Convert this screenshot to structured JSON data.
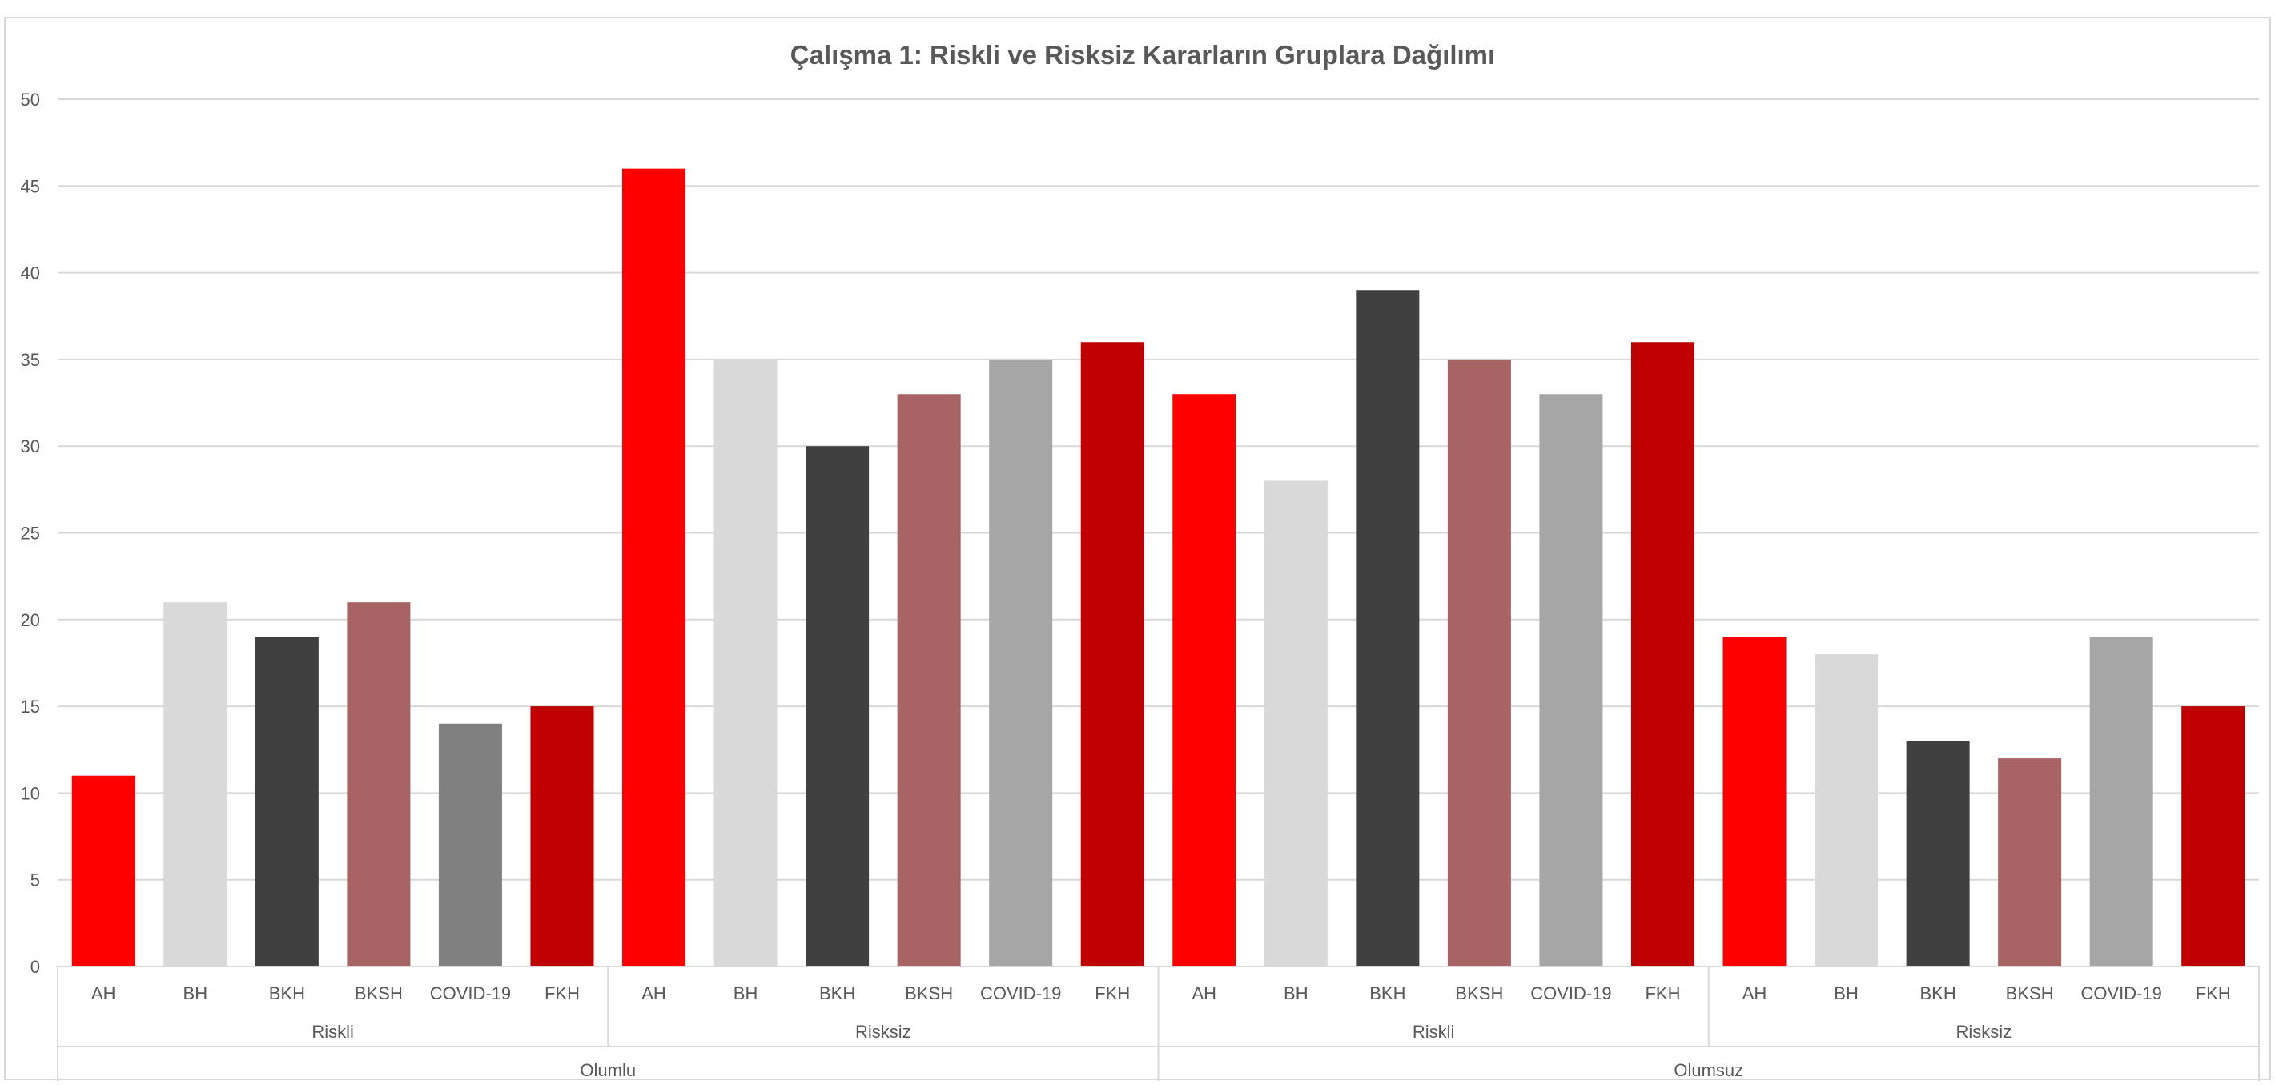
{
  "chart_data": {
    "type": "bar",
    "title": "Çalışma 1: Riskli ve Risksiz Kararların Gruplara Dağılımı",
    "xlabel": "",
    "ylabel": "",
    "ylim": [
      0,
      50
    ],
    "y_ticks": [
      0,
      5,
      10,
      15,
      20,
      25,
      30,
      35,
      40,
      45,
      50
    ],
    "grid": true,
    "legend": "none",
    "outer_groups": [
      {
        "label": "Olumlu",
        "groups": [
          {
            "label": "Riskli",
            "bars": [
              {
                "category": "AH",
                "value": 11,
                "color": "#ff0000"
              },
              {
                "category": "BH",
                "value": 21,
                "color": "#d9d9d9"
              },
              {
                "category": "BKH",
                "value": 19,
                "color": "#404040"
              },
              {
                "category": "BKSH",
                "value": 21,
                "color": "#a86464"
              },
              {
                "category": "COVID-19",
                "value": 14,
                "color": "#808080"
              },
              {
                "category": "FKH",
                "value": 15,
                "color": "#c00000"
              }
            ]
          },
          {
            "label": "Risksiz",
            "bars": [
              {
                "category": "AH",
                "value": 46,
                "color": "#ff0000"
              },
              {
                "category": "BH",
                "value": 35,
                "color": "#d9d9d9"
              },
              {
                "category": "BKH",
                "value": 30,
                "color": "#404040"
              },
              {
                "category": "BKSH",
                "value": 33,
                "color": "#a86464"
              },
              {
                "category": "COVID-19",
                "value": 35,
                "color": "#a6a6a6"
              },
              {
                "category": "FKH",
                "value": 36,
                "color": "#c00000"
              }
            ]
          }
        ]
      },
      {
        "label": "Olumsuz",
        "groups": [
          {
            "label": "Riskli",
            "bars": [
              {
                "category": "AH",
                "value": 33,
                "color": "#ff0000"
              },
              {
                "category": "BH",
                "value": 28,
                "color": "#d9d9d9"
              },
              {
                "category": "BKH",
                "value": 39,
                "color": "#404040"
              },
              {
                "category": "BKSH",
                "value": 35,
                "color": "#a86464"
              },
              {
                "category": "COVID-19",
                "value": 33,
                "color": "#a6a6a6"
              },
              {
                "category": "FKH",
                "value": 36,
                "color": "#c00000"
              }
            ]
          },
          {
            "label": "Risksiz",
            "bars": [
              {
                "category": "AH",
                "value": 19,
                "color": "#ff0000"
              },
              {
                "category": "BH",
                "value": 18,
                "color": "#d9d9d9"
              },
              {
                "category": "BKH",
                "value": 13,
                "color": "#404040"
              },
              {
                "category": "BKSH",
                "value": 12,
                "color": "#a86464"
              },
              {
                "category": "COVID-19",
                "value": 19,
                "color": "#a6a6a6"
              },
              {
                "category": "FKH",
                "value": 15,
                "color": "#c00000"
              }
            ]
          }
        ]
      }
    ]
  }
}
